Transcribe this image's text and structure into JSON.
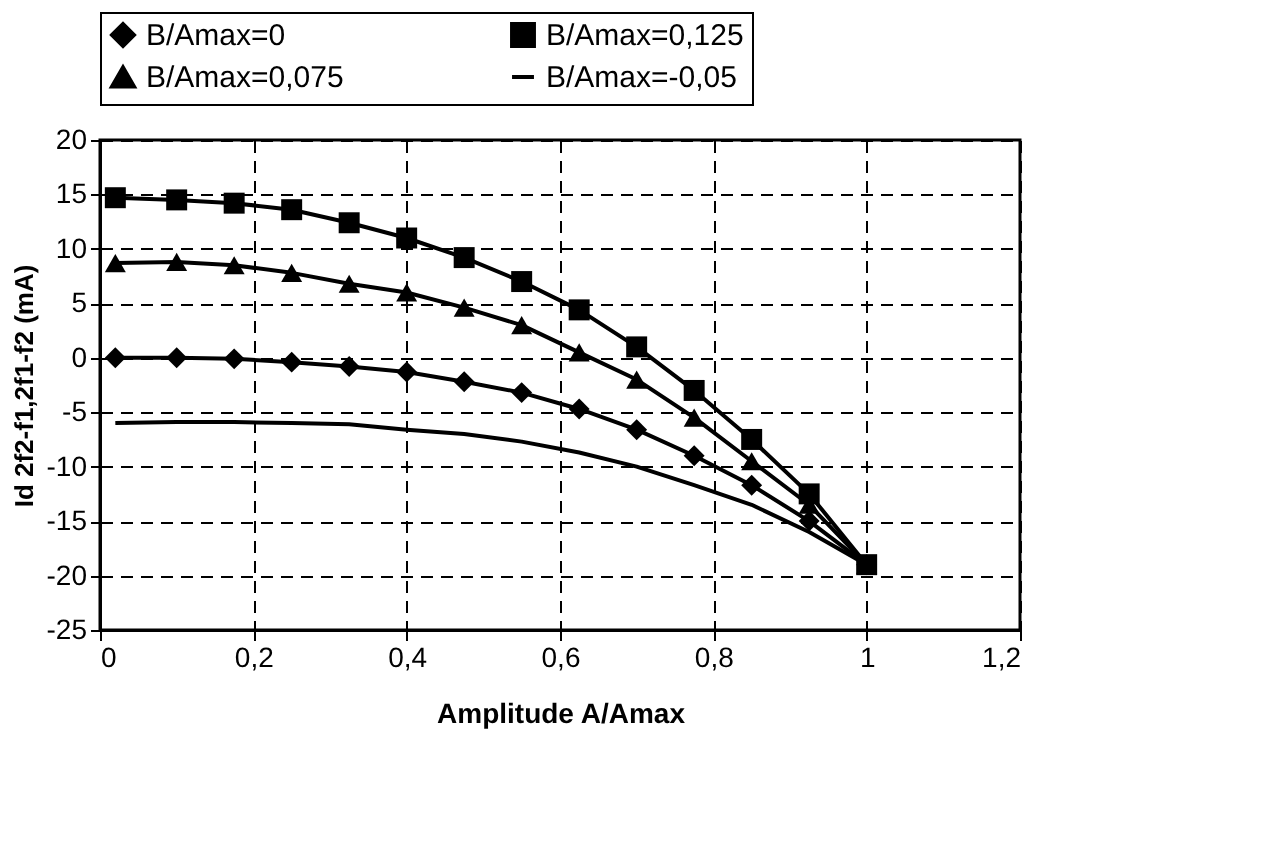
{
  "chart_data": {
    "type": "line",
    "xlabel": "Amplitude A/Amax",
    "ylabel": "Id 2f2-f1,2f1-f2 (mA)",
    "x": [
      0.02,
      0.1,
      0.175,
      0.25,
      0.325,
      0.4,
      0.475,
      0.55,
      0.625,
      0.7,
      0.775,
      0.85,
      0.925,
      1.0
    ],
    "series": [
      {
        "name": "B/Amax=0",
        "color": "#000000",
        "marker": "diamond",
        "values": [
          0,
          0,
          -0.1,
          -0.4,
          -0.8,
          -1.3,
          -2.2,
          -3.2,
          -4.7,
          -6.6,
          -9,
          -11.7,
          -15,
          -19
        ]
      },
      {
        "name": "B/Amax=0,125",
        "color": "#000000",
        "marker": "square",
        "values": [
          14.7,
          14.5,
          14.2,
          13.6,
          12.4,
          11,
          9.2,
          7,
          4.4,
          1,
          -3,
          -7.5,
          -12.5,
          -19
        ]
      },
      {
        "name": "B/Amax=0,075",
        "color": "#000000",
        "marker": "triangle",
        "values": [
          8.7,
          8.8,
          8.5,
          7.8,
          6.8,
          6,
          4.6,
          3,
          0.5,
          -2,
          -5.5,
          -9.5,
          -13.5,
          -19
        ]
      },
      {
        "name": "B/Amax=-0,05",
        "color": "#000000",
        "marker": "none",
        "values": [
          -6,
          -5.9,
          -5.9,
          -6,
          -6.1,
          -6.6,
          -7,
          -7.7,
          -8.7,
          -10,
          -11.7,
          -13.5,
          -16,
          -19
        ]
      }
    ],
    "xlim": [
      0,
      1.2
    ],
    "xticks": [
      0,
      {
        "value": 0.2,
        "label": "0,2"
      },
      {
        "value": 0.4,
        "label": "0,4"
      },
      {
        "value": 0.6,
        "label": "0,6"
      },
      {
        "value": 0.8,
        "label": "0,8"
      },
      1,
      {
        "value": 1.2,
        "label": "1,2"
      }
    ],
    "ylim": [
      -25,
      20
    ],
    "yticks": [
      -25,
      -20,
      -15,
      -10,
      -5,
      0,
      5,
      10,
      15,
      20
    ],
    "grid": true,
    "legend": "top",
    "line_style": "solid"
  }
}
